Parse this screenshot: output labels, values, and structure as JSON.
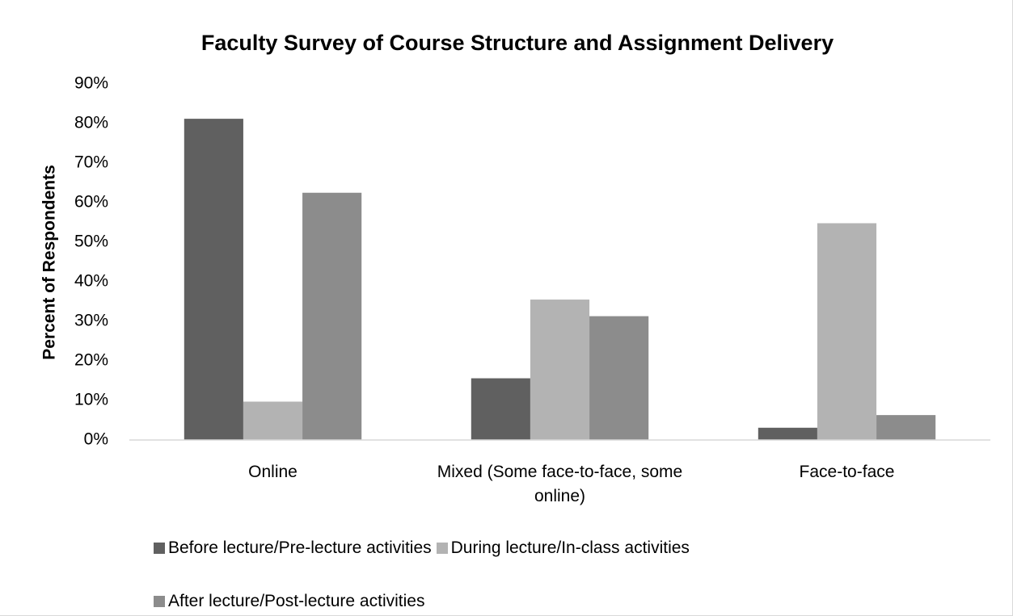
{
  "chart_data": {
    "type": "bar",
    "title": "Faculty Survey of Course Structure and Assignment Delivery",
    "y_label": "Percent of Respondents",
    "categories": [
      "Online",
      "Mixed (Some face-to-face, some online)",
      "Face-to-face"
    ],
    "series": [
      {
        "name": "Before lecture/Pre-lecture activities",
        "color": "#606060",
        "values": [
          81.2,
          15.6,
          3.1
        ]
      },
      {
        "name": "During lecture/In-class activities",
        "color": "#b3b3b3",
        "values": [
          9.7,
          35.5,
          54.8
        ]
      },
      {
        "name": "After lecture/Post-lecture activities",
        "color": "#8c8c8c",
        "values": [
          62.5,
          31.3,
          6.3
        ]
      }
    ],
    "ylim": [
      0,
      90
    ],
    "yticks": [
      {
        "value": 0,
        "label": "0%"
      },
      {
        "value": 10,
        "label": "10%"
      },
      {
        "value": 20,
        "label": "20%"
      },
      {
        "value": 30,
        "label": "30%"
      },
      {
        "value": 40,
        "label": "40%"
      },
      {
        "value": 50,
        "label": "50%"
      },
      {
        "value": 60,
        "label": "60%"
      },
      {
        "value": 70,
        "label": "70%"
      },
      {
        "value": 80,
        "label": "80%"
      },
      {
        "value": 90,
        "label": "90%"
      }
    ],
    "grid": false,
    "legend": "bottom"
  }
}
